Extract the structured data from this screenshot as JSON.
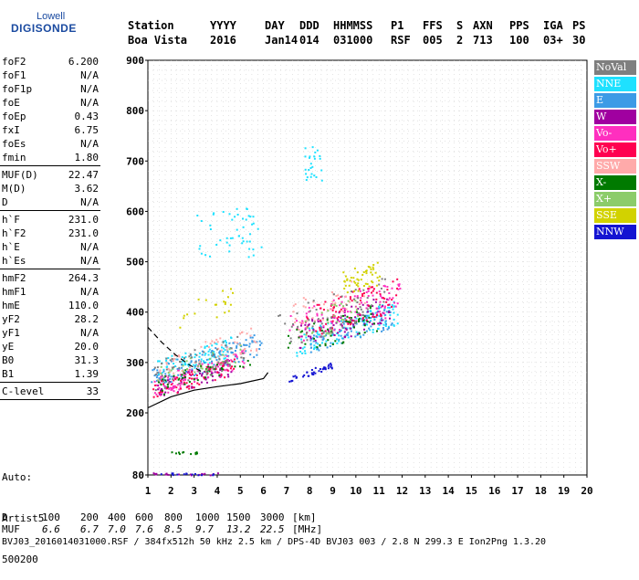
{
  "logo": {
    "line1": "Lowell",
    "line2": "DIGISONDE"
  },
  "header": {
    "row1": [
      "Station",
      "YYYY",
      "DAY",
      "DDD",
      "HHMMSS",
      "P1",
      "FFS",
      "S",
      "AXN",
      "PPS",
      "IGA",
      "PS"
    ],
    "row2": [
      "Boa Vista",
      "2016",
      "Jan14",
      "014",
      "031000",
      "RSF",
      "005",
      "2",
      "713",
      "100",
      "03+",
      "30"
    ]
  },
  "params": [
    {
      "name": "foF2",
      "value": "6.200"
    },
    {
      "name": "foF1",
      "value": "N/A"
    },
    {
      "name": "foF1p",
      "value": "N/A"
    },
    {
      "name": "foE",
      "value": "N/A"
    },
    {
      "name": "foEp",
      "value": "0.43"
    },
    {
      "name": "fxI",
      "value": "6.75"
    },
    {
      "name": "foEs",
      "value": "N/A"
    },
    {
      "name": "fmin",
      "value": "1.80"
    },
    {
      "name": "MUF(D)",
      "value": "22.47"
    },
    {
      "name": "M(D)",
      "value": "3.62"
    },
    {
      "name": "D",
      "value": "N/A"
    },
    {
      "name": "h`F",
      "value": "231.0"
    },
    {
      "name": "h`F2",
      "value": "231.0"
    },
    {
      "name": "h`E",
      "value": "N/A"
    },
    {
      "name": "h`Es",
      "value": "N/A"
    },
    {
      "name": "hmF2",
      "value": "264.3"
    },
    {
      "name": "hmF1",
      "value": "N/A"
    },
    {
      "name": "hmE",
      "value": "110.0"
    },
    {
      "name": "yF2",
      "value": "28.2"
    },
    {
      "name": "yF1",
      "value": "N/A"
    },
    {
      "name": "yE",
      "value": "20.0"
    },
    {
      "name": "B0",
      "value": "31.3"
    },
    {
      "name": "B1",
      "value": "1.39"
    }
  ],
  "clevel": {
    "name": "C-level",
    "value": "33"
  },
  "auto": {
    "line1": "Auto:",
    "line2": "Artist5",
    "line3": "500200"
  },
  "legend": [
    {
      "label": "NoVal",
      "color": "#7f7f7f"
    },
    {
      "label": "NNE",
      "color": "#1ee1ff"
    },
    {
      "label": "E",
      "color": "#3c9be6"
    },
    {
      "label": "W",
      "color": "#a000a0"
    },
    {
      "label": "Vo-",
      "color": "#ff2fbf"
    },
    {
      "label": "Vo+",
      "color": "#ff0050"
    },
    {
      "label": "SSW",
      "color": "#ffaaaa"
    },
    {
      "label": "X-",
      "color": "#007a00"
    },
    {
      "label": "X+",
      "color": "#8ccc6a"
    },
    {
      "label": "SSE",
      "color": "#d2d200"
    },
    {
      "label": "NNW",
      "color": "#1414d2"
    }
  ],
  "bottom": {
    "row_d_label": "D",
    "row_d": [
      "100",
      "200",
      "400",
      "600",
      "800",
      "1000",
      "1500",
      "3000",
      "[km]"
    ],
    "row_muf_label": "MUF",
    "row_muf": [
      "6.6",
      "6.7",
      "7.0",
      "7.6",
      "8.5",
      "9.7",
      "13.2",
      "22.5",
      "[MHz]"
    ],
    "footer": "BVJ03_2016014031000.RSF / 384fx512h 50 kHz 2.5 km / DPS-4D BVJ03 003 / 2.8 N 299.3 E Ion2Png 1.3.20"
  },
  "chart_data": {
    "type": "scatter",
    "xlim": [
      1,
      20
    ],
    "ylim": [
      80,
      900
    ],
    "xticks": [
      "1",
      "2",
      "3",
      "4",
      "5",
      "6",
      "7",
      "8",
      "9",
      "10",
      "11",
      "12",
      "13",
      "14",
      "15",
      "16",
      "17",
      "18",
      "19",
      "20"
    ],
    "yticks": [
      "80",
      "200",
      "300",
      "400",
      "500",
      "600",
      "700",
      "800",
      "900"
    ],
    "grid": true,
    "series": [
      {
        "name": "NNE",
        "color": "#1ee1ff",
        "clusters": [
          [
            3.0,
            310,
            1.6,
            20,
            90
          ],
          [
            9.6,
            370,
            2.2,
            25,
            110
          ],
          [
            4.5,
            560,
            1.4,
            50,
            50
          ],
          [
            8.1,
            700,
            0.4,
            40,
            25
          ]
        ]
      },
      {
        "name": "E",
        "color": "#3c9be6",
        "clusters": [
          [
            3.5,
            305,
            2.4,
            22,
            120
          ],
          [
            9.8,
            370,
            1.8,
            25,
            90
          ]
        ]
      },
      {
        "name": "W",
        "color": "#a000a0",
        "clusters": [
          [
            3.0,
            270,
            1.6,
            18,
            70
          ],
          [
            9.5,
            380,
            2.0,
            30,
            90
          ],
          [
            2.6,
            83,
            1.4,
            2,
            20
          ]
        ]
      },
      {
        "name": "Vo-",
        "color": "#ff2fbf",
        "clusters": [
          [
            3.2,
            280,
            2.0,
            20,
            100
          ],
          [
            9.5,
            400,
            2.4,
            35,
            100
          ]
        ]
      },
      {
        "name": "Vo+",
        "color": "#ff0050",
        "clusters": [
          [
            3.0,
            270,
            1.8,
            18,
            60
          ],
          [
            9.8,
            410,
            2.0,
            35,
            80
          ]
        ]
      },
      {
        "name": "SSW",
        "color": "#ffaaaa",
        "clusters": [
          [
            3.6,
            320,
            2.2,
            25,
            60
          ],
          [
            8.8,
            420,
            1.6,
            35,
            40
          ]
        ]
      },
      {
        "name": "X-",
        "color": "#007a00",
        "clusters": [
          [
            3.4,
            280,
            2.0,
            18,
            40
          ],
          [
            8.9,
            360,
            2.0,
            30,
            50
          ],
          [
            2.6,
            123,
            0.6,
            3,
            12
          ]
        ]
      },
      {
        "name": "X+",
        "color": "#8ccc6a",
        "clusters": [
          [
            3.2,
            300,
            1.8,
            20,
            30
          ],
          [
            9.2,
            390,
            1.6,
            30,
            30
          ]
        ]
      },
      {
        "name": "SSE",
        "color": "#d2d200",
        "clusters": [
          [
            10.2,
            470,
            0.8,
            25,
            50
          ],
          [
            3.5,
            410,
            1.2,
            25,
            20
          ]
        ]
      },
      {
        "name": "NNW",
        "color": "#1414d2",
        "clusters": [
          [
            8.0,
            282,
            1.0,
            6,
            40
          ],
          [
            2.6,
            83,
            1.3,
            2,
            15
          ]
        ]
      },
      {
        "name": "NoVal",
        "color": "#7f7f7f",
        "clusters": [
          [
            3.2,
            300,
            2.0,
            30,
            60
          ],
          [
            9.0,
            400,
            2.4,
            40,
            60
          ]
        ]
      }
    ],
    "profile_dashed": [
      [
        1,
        370
      ],
      [
        1.6,
        340
      ],
      [
        2.2,
        315
      ],
      [
        2.8,
        295
      ],
      [
        3.4,
        280
      ]
    ],
    "profile_solid": [
      [
        1,
        210
      ],
      [
        2,
        232
      ],
      [
        3,
        245
      ],
      [
        4,
        252
      ],
      [
        5,
        258
      ],
      [
        6,
        268
      ],
      [
        6.2,
        280
      ]
    ]
  }
}
